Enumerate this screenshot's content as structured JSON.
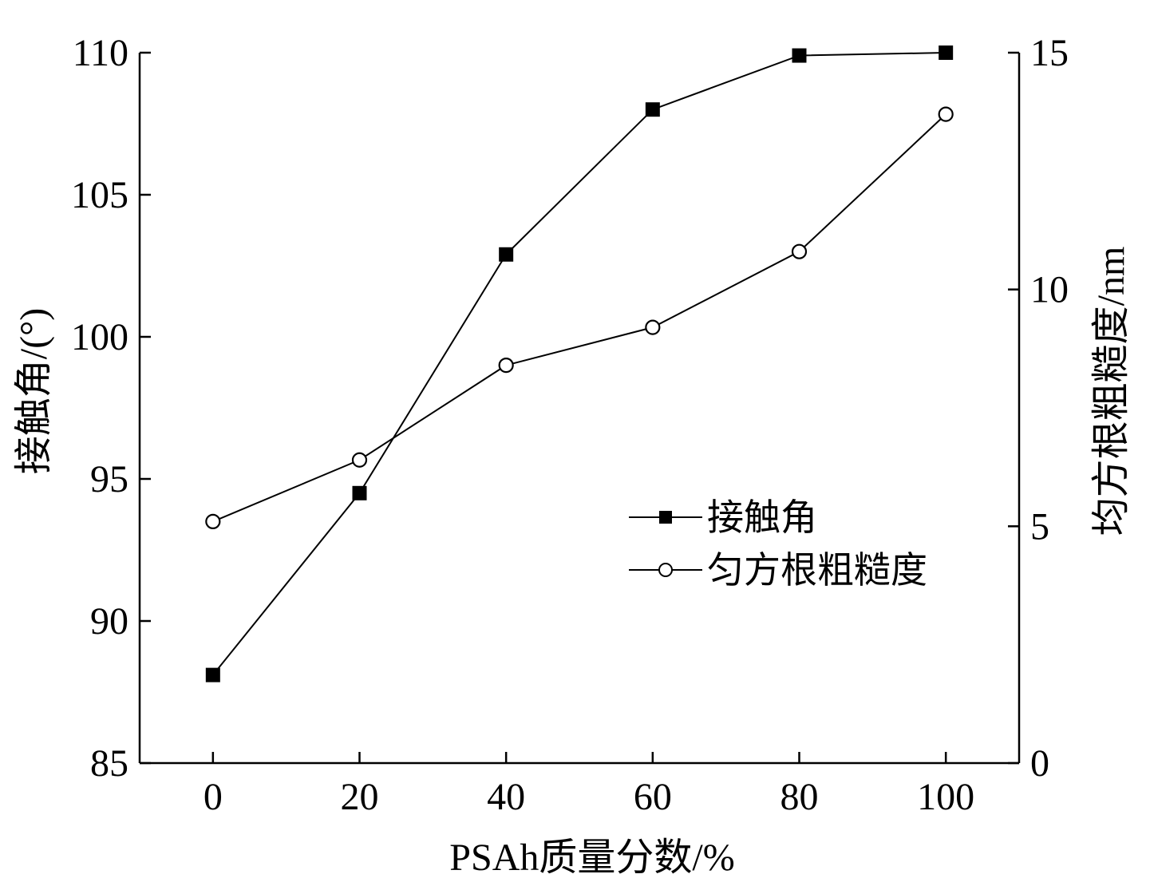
{
  "chart_data": {
    "type": "line",
    "xlabel": "PSAh质量分数/%",
    "ylabel": "接触角/(°)",
    "y2label": "均方根粗糙度/nm",
    "xlim": [
      -10,
      110
    ],
    "ylim": [
      85,
      110
    ],
    "y2lim": [
      0,
      15
    ],
    "x_ticks": [
      0,
      20,
      40,
      60,
      80,
      100
    ],
    "y_ticks": [
      85,
      90,
      95,
      100,
      105,
      110
    ],
    "y2_ticks": [
      0,
      5,
      10,
      15
    ],
    "grid": false,
    "legend_position": "center-right",
    "x": [
      0,
      20,
      40,
      60,
      80,
      100
    ],
    "series": [
      {
        "name": "接触角",
        "axis": "left",
        "marker": "filled-square",
        "color": "#000000",
        "values": [
          88.1,
          94.5,
          102.9,
          108.0,
          109.9,
          110.0
        ]
      },
      {
        "name": "匀方根粗糙度",
        "axis": "right",
        "marker": "open-circle",
        "color": "#000000",
        "values": [
          5.1,
          6.4,
          8.4,
          9.2,
          10.8,
          13.7
        ]
      }
    ]
  }
}
